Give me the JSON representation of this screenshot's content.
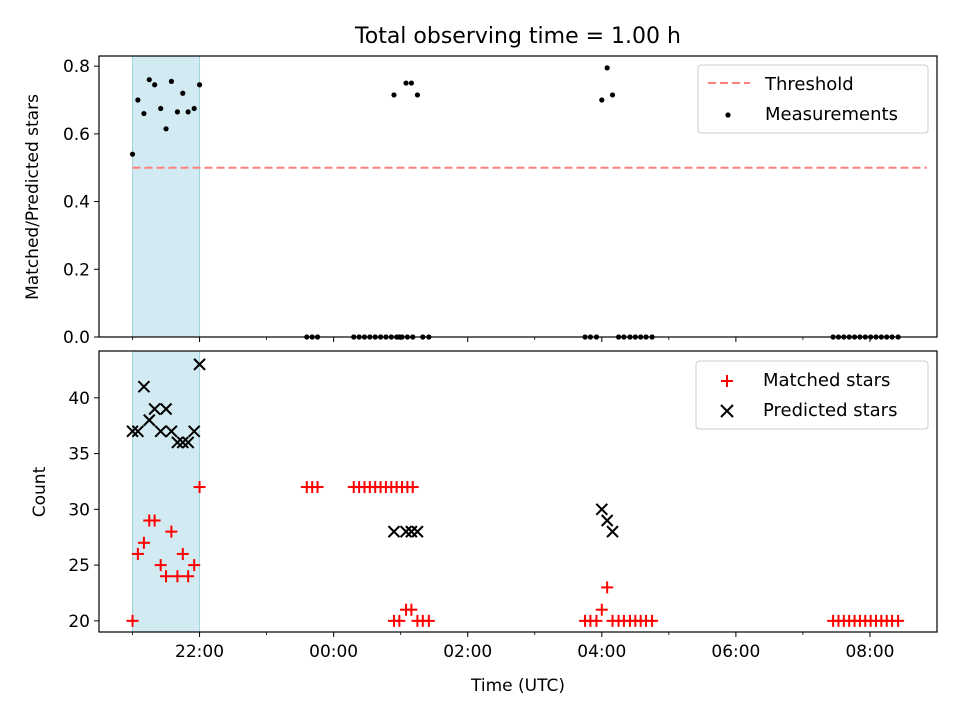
{
  "title": "Total observing time = 1.00 h",
  "chart_data": [
    {
      "type": "scatter",
      "ylabel": "Matched/Predicted stars",
      "xlim_hours": [
        20.5,
        33.0
      ],
      "ylim": [
        0.0,
        0.83
      ],
      "yticks": [
        0.0,
        0.2,
        0.4,
        0.6,
        0.8
      ],
      "ytick_labels": [
        "0.0",
        "0.2",
        "0.4",
        "0.6",
        "0.8"
      ],
      "shaded_span_hours": [
        21.0,
        22.0
      ],
      "legend_position": "upper right",
      "threshold": {
        "name": "Threshold",
        "y": 0.5,
        "x_range_hours": [
          21.0,
          32.85
        ],
        "color": "#ff7f7f"
      },
      "series": [
        {
          "name": "Measurements",
          "marker": "dot",
          "color": "#000000",
          "x_hours": [
            21.0,
            21.08,
            21.17,
            21.25,
            21.33,
            21.42,
            21.5,
            21.58,
            21.67,
            21.75,
            21.83,
            21.92,
            22.0,
            23.6,
            23.68,
            23.76,
            24.3,
            24.38,
            24.46,
            24.54,
            24.62,
            24.7,
            24.78,
            24.86,
            24.94,
            25.02,
            25.1,
            25.18,
            24.9,
            24.98,
            25.08,
            25.16,
            25.25,
            25.33,
            25.42,
            27.75,
            27.83,
            27.92,
            28.0,
            28.08,
            28.16,
            28.25,
            28.33,
            28.42,
            28.5,
            28.58,
            28.66,
            28.75,
            31.45,
            31.53,
            31.61,
            31.69,
            31.77,
            31.85,
            31.93,
            32.01,
            32.09,
            32.17,
            32.25,
            32.33,
            32.42
          ],
          "y": [
            0.54,
            0.7,
            0.66,
            0.76,
            0.745,
            0.675,
            0.615,
            0.755,
            0.665,
            0.72,
            0.665,
            0.675,
            0.745,
            0.0,
            0.0,
            0.0,
            0.0,
            0.0,
            0.0,
            0.0,
            0.0,
            0.0,
            0.0,
            0.0,
            0.0,
            0.0,
            0.0,
            0.0,
            0.715,
            0.0,
            0.75,
            0.75,
            0.715,
            0.0,
            0.0,
            0.0,
            0.0,
            0.0,
            0.7,
            0.795,
            0.715,
            0.0,
            0.0,
            0.0,
            0.0,
            0.0,
            0.0,
            0.0,
            0.0,
            0.0,
            0.0,
            0.0,
            0.0,
            0.0,
            0.0,
            0.0,
            0.0,
            0.0,
            0.0,
            0.0,
            0.0
          ]
        }
      ]
    },
    {
      "type": "scatter",
      "ylabel": "Count",
      "xlabel": "Time (UTC)",
      "xlim_hours": [
        20.5,
        33.0
      ],
      "ylim": [
        19.0,
        44.2
      ],
      "yticks": [
        20,
        25,
        30,
        35,
        40
      ],
      "ytick_labels": [
        "20",
        "25",
        "30",
        "35",
        "40"
      ],
      "xticks_hours": [
        22,
        24,
        26,
        28,
        30,
        32
      ],
      "xtick_labels": [
        "22:00",
        "00:00",
        "02:00",
        "04:00",
        "06:00",
        "08:00"
      ],
      "minor_xticks_hours": [
        21,
        23,
        25,
        27,
        29,
        31
      ],
      "shaded_span_hours": [
        21.0,
        22.0
      ],
      "legend_position": "upper right",
      "series": [
        {
          "name": "Matched stars",
          "marker": "plus",
          "color": "#ff0000",
          "x_hours": [
            21.0,
            21.08,
            21.17,
            21.25,
            21.33,
            21.42,
            21.5,
            21.58,
            21.67,
            21.75,
            21.83,
            21.92,
            22.0,
            23.6,
            23.68,
            23.76,
            24.3,
            24.38,
            24.46,
            24.54,
            24.62,
            24.7,
            24.78,
            24.86,
            24.94,
            25.02,
            25.1,
            25.18,
            24.9,
            24.98,
            25.08,
            25.16,
            25.25,
            25.33,
            25.42,
            27.75,
            27.83,
            27.92,
            28.0,
            28.08,
            28.16,
            28.25,
            28.33,
            28.42,
            28.5,
            28.58,
            28.66,
            28.75,
            31.45,
            31.53,
            31.61,
            31.69,
            31.77,
            31.85,
            31.93,
            32.01,
            32.09,
            32.17,
            32.25,
            32.33,
            32.42
          ],
          "y": [
            20,
            26,
            27,
            29,
            29,
            25,
            24,
            28,
            24,
            26,
            24,
            25,
            32,
            32,
            32,
            32,
            32,
            32,
            32,
            32,
            32,
            32,
            32,
            32,
            32,
            32,
            32,
            32,
            20,
            20,
            21,
            21,
            20,
            20,
            20,
            20,
            20,
            20,
            21,
            23,
            20,
            20,
            20,
            20,
            20,
            20,
            20,
            20,
            20,
            20,
            20,
            20,
            20,
            20,
            20,
            20,
            20,
            20,
            20,
            20,
            20
          ]
        },
        {
          "name": "Predicted stars",
          "marker": "x",
          "color": "#000000",
          "x_hours": [
            21.0,
            21.08,
            21.17,
            21.25,
            21.33,
            21.42,
            21.5,
            21.58,
            21.67,
            21.75,
            21.83,
            21.92,
            22.0,
            24.9,
            25.08,
            25.16,
            25.25,
            28.0,
            28.08,
            28.16
          ],
          "y": [
            37,
            37,
            41,
            38,
            39,
            37,
            39,
            37,
            36,
            36,
            36,
            37,
            43,
            28,
            28,
            28,
            28,
            30,
            29,
            28
          ]
        }
      ]
    }
  ],
  "colors": {
    "shade": "#add8e6",
    "matched": "#ff0000",
    "predicted": "#000000",
    "threshold": "#ff7f7f"
  }
}
